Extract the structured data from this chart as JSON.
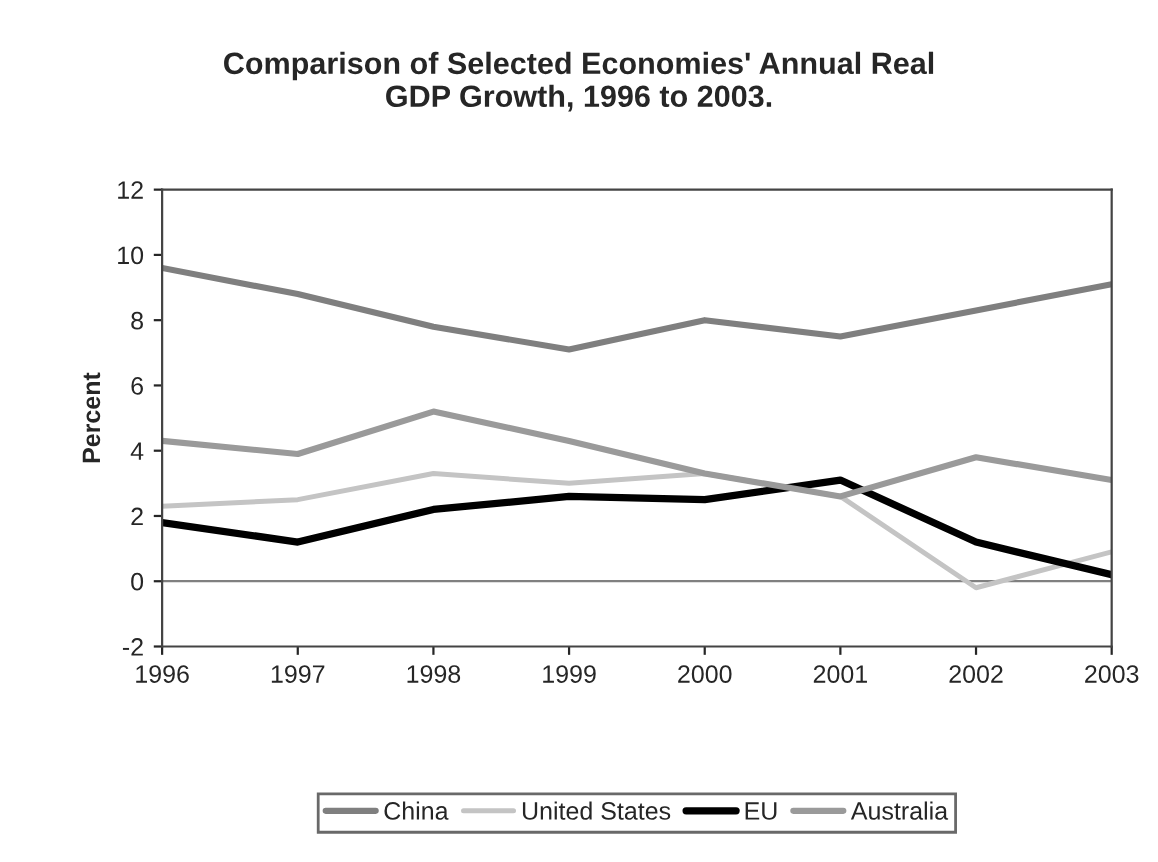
{
  "chart_data": {
    "type": "line",
    "title": "Comparison of Selected Economies' Annual Real\nGDP Growth, 1996 to 2003.",
    "ylabel": "Percent",
    "categories": [
      "1996",
      "1997",
      "1998",
      "1999",
      "2000",
      "2001",
      "2002",
      "2003"
    ],
    "series": [
      {
        "name": "China",
        "color": "#7f7f7f",
        "values": [
          9.6,
          8.8,
          7.8,
          7.1,
          8.0,
          7.5,
          8.3,
          9.1
        ]
      },
      {
        "name": "United States",
        "color": "#c4c4c4",
        "values": [
          2.3,
          2.5,
          3.3,
          3.0,
          3.3,
          2.6,
          -0.2,
          0.9
        ]
      },
      {
        "name": "EU",
        "color": "#000000",
        "values": [
          1.8,
          1.2,
          2.2,
          2.6,
          2.5,
          3.1,
          1.2,
          0.2
        ]
      },
      {
        "name": "Australia",
        "color": "#9a9a9a",
        "values": [
          4.3,
          3.9,
          5.2,
          4.3,
          3.3,
          2.6,
          3.8,
          3.1
        ]
      }
    ],
    "ylim": [
      -2,
      12
    ],
    "yticks": [
      -2,
      0,
      2,
      4,
      6,
      8,
      10,
      12
    ],
    "ref_lines": [
      {
        "axis": "y",
        "value": 0,
        "color": "#808080"
      }
    ],
    "grid": false,
    "legend": "bottom",
    "marker": "none",
    "line_style": "solid"
  }
}
